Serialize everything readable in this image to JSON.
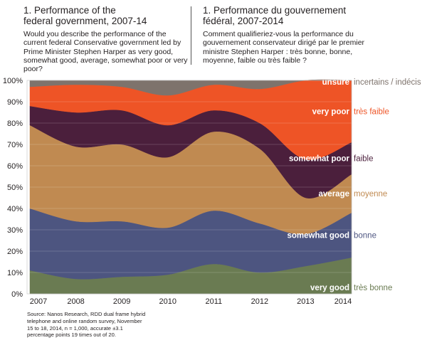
{
  "header": {
    "en_title_line1": "1. Performance of the",
    "en_title_line2": "federal government, 2007-14",
    "en_question": "Would you describe the performance of the current federal Conservative government led by Prime Minister Stephen Harper as very good, somewhat good, average, somewhat poor or very poor?",
    "fr_title_line1": "1. Performance du gouvernement",
    "fr_title_line2": "fédéral, 2007-2014",
    "fr_question": "Comment qualifieriez-vous la performance du gouvernement conservateur dirigé par le premier ministre Stephen Harper : très bonne, bonne, moyenne, faible ou très faible ?"
  },
  "source_note": "Source: Nanos Research, RDD dual frame hybrid telephone and online random survey, November 15 to 18, 2014, n = 1,000, accurate ±3.1 percentage points 19 times out of 20.",
  "chart_data": {
    "type": "area",
    "stacked": true,
    "x": [
      "2007",
      "2008",
      "2009",
      "2010",
      "2011",
      "2012",
      "2013",
      "2014"
    ],
    "ylim": [
      0,
      100
    ],
    "yticks": [
      "0%",
      "10%",
      "20%",
      "30%",
      "40%",
      "50%",
      "60%",
      "70%",
      "80%",
      "90%",
      "100%"
    ],
    "grid": true,
    "legend": "right, inline labels",
    "series": [
      {
        "name": "very good",
        "name_fr": "très bonne",
        "color": "#6a7b52",
        "values": [
          11,
          7,
          8,
          9,
          14,
          10,
          13,
          17
        ]
      },
      {
        "name": "somewhat good",
        "name_fr": "bonne",
        "color": "#4d5580",
        "values": [
          29,
          27,
          26,
          22,
          25,
          23,
          15,
          21
        ]
      },
      {
        "name": "average",
        "name_fr": "moyenne",
        "color": "#c08a51",
        "values": [
          39,
          35,
          36,
          33,
          37,
          35,
          17,
          18
        ]
      },
      {
        "name": "somewhat poor",
        "name_fr": "faible",
        "color": "#4b1f3c",
        "values": [
          9,
          16,
          16,
          15,
          10,
          12,
          18,
          15
        ]
      },
      {
        "name": "very poor",
        "name_fr": "très faible",
        "color": "#ee5426",
        "values": [
          9,
          13,
          11,
          14,
          12,
          16,
          37,
          29
        ]
      },
      {
        "name": "unsure",
        "name_fr": "incertains / indécis",
        "color": "#7e736c",
        "values": [
          3,
          2,
          3,
          7,
          2,
          4,
          0,
          0
        ]
      }
    ]
  }
}
